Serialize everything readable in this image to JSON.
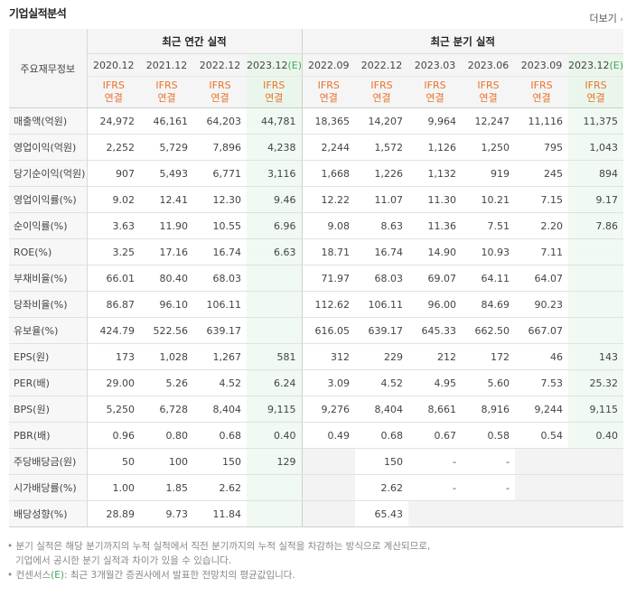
{
  "title": "기업실적분석",
  "more_label": "더보기",
  "row_header": "주요재무정보",
  "groups": {
    "annual": "최근 연간 실적",
    "quarterly": "최근 분기 실적"
  },
  "columns": [
    {
      "date": "2020.12",
      "e": "",
      "ifrs": "IFRS",
      "kind": "연결"
    },
    {
      "date": "2021.12",
      "e": "",
      "ifrs": "IFRS",
      "kind": "연결"
    },
    {
      "date": "2022.12",
      "e": "",
      "ifrs": "IFRS",
      "kind": "연결"
    },
    {
      "date": "2023.12",
      "e": "(E)",
      "ifrs": "IFRS",
      "kind": "연결"
    },
    {
      "date": "2022.09",
      "e": "",
      "ifrs": "IFRS",
      "kind": "연결"
    },
    {
      "date": "2022.12",
      "e": "",
      "ifrs": "IFRS",
      "kind": "연결"
    },
    {
      "date": "2023.03",
      "e": "",
      "ifrs": "IFRS",
      "kind": "연결"
    },
    {
      "date": "2023.06",
      "e": "",
      "ifrs": "IFRS",
      "kind": "연결"
    },
    {
      "date": "2023.09",
      "e": "",
      "ifrs": "IFRS",
      "kind": "연결"
    },
    {
      "date": "2023.12",
      "e": "(E)",
      "ifrs": "IFRS",
      "kind": "연결"
    }
  ],
  "rows": [
    {
      "label": "매출액(억원)",
      "values": [
        "24,972",
        "46,161",
        "64,203",
        "44,781",
        "18,365",
        "14,207",
        "9,964",
        "12,247",
        "11,116",
        "11,375"
      ]
    },
    {
      "label": "영업이익(억원)",
      "values": [
        "2,252",
        "5,729",
        "7,896",
        "4,238",
        "2,244",
        "1,572",
        "1,126",
        "1,250",
        "795",
        "1,043"
      ]
    },
    {
      "label": "당기순이익(억원)",
      "values": [
        "907",
        "5,493",
        "6,771",
        "3,116",
        "1,668",
        "1,226",
        "1,132",
        "919",
        "245",
        "894"
      ]
    },
    {
      "label": "영업이익률(%)",
      "values": [
        "9.02",
        "12.41",
        "12.30",
        "9.46",
        "12.22",
        "11.07",
        "11.30",
        "10.21",
        "7.15",
        "9.17"
      ]
    },
    {
      "label": "순이익률(%)",
      "values": [
        "3.63",
        "11.90",
        "10.55",
        "6.96",
        "9.08",
        "8.63",
        "11.36",
        "7.51",
        "2.20",
        "7.86"
      ]
    },
    {
      "label": "ROE(%)",
      "values": [
        "3.25",
        "17.16",
        "16.74",
        "6.63",
        "18.71",
        "16.74",
        "14.90",
        "10.93",
        "7.11",
        ""
      ]
    },
    {
      "label": "부채비율(%)",
      "values": [
        "66.01",
        "80.40",
        "68.03",
        "",
        "71.97",
        "68.03",
        "69.07",
        "64.11",
        "64.07",
        ""
      ]
    },
    {
      "label": "당좌비율(%)",
      "values": [
        "86.87",
        "96.10",
        "106.11",
        "",
        "112.62",
        "106.11",
        "96.00",
        "84.69",
        "90.23",
        ""
      ]
    },
    {
      "label": "유보율(%)",
      "values": [
        "424.79",
        "522.56",
        "639.17",
        "",
        "616.05",
        "639.17",
        "645.33",
        "662.50",
        "667.07",
        ""
      ]
    },
    {
      "label": "EPS(원)",
      "values": [
        "173",
        "1,028",
        "1,267",
        "581",
        "312",
        "229",
        "212",
        "172",
        "46",
        "143"
      ]
    },
    {
      "label": "PER(배)",
      "values": [
        "29.00",
        "5.26",
        "4.52",
        "6.24",
        "3.09",
        "4.52",
        "4.95",
        "5.60",
        "7.53",
        "25.32"
      ]
    },
    {
      "label": "BPS(원)",
      "values": [
        "5,250",
        "6,728",
        "8,404",
        "9,115",
        "9,276",
        "8,404",
        "8,661",
        "8,916",
        "9,244",
        "9,115"
      ]
    },
    {
      "label": "PBR(배)",
      "values": [
        "0.96",
        "0.80",
        "0.68",
        "0.40",
        "0.49",
        "0.68",
        "0.67",
        "0.58",
        "0.54",
        "0.40"
      ]
    },
    {
      "label": "주당배당금(원)",
      "values": [
        "50",
        "100",
        "150",
        "129",
        "",
        "150",
        "-",
        "-",
        "",
        ""
      ]
    },
    {
      "label": "시가배당률(%)",
      "values": [
        "1.00",
        "1.85",
        "2.62",
        "",
        "",
        "2.62",
        "-",
        "-",
        "",
        ""
      ]
    },
    {
      "label": "배당성향(%)",
      "values": [
        "28.89",
        "9.73",
        "11.84",
        "",
        "",
        "65.43",
        "",
        "",
        "",
        ""
      ]
    }
  ],
  "notes": {
    "line1": "분기 실적은 해당 분기까지의 누적 실적에서 직전 분기까지의 누적 실적을 차감하는 방식으로 계산되므로,",
    "line2": "기업에서 공시한 분기 실적과 차이가 있을 수 있습니다.",
    "line3_pre": "컨센서스",
    "line3_mark": "(E)",
    "line3_post": ": 최근 3개월간 증권사에서 발표한 전망치의 평균값입니다."
  }
}
